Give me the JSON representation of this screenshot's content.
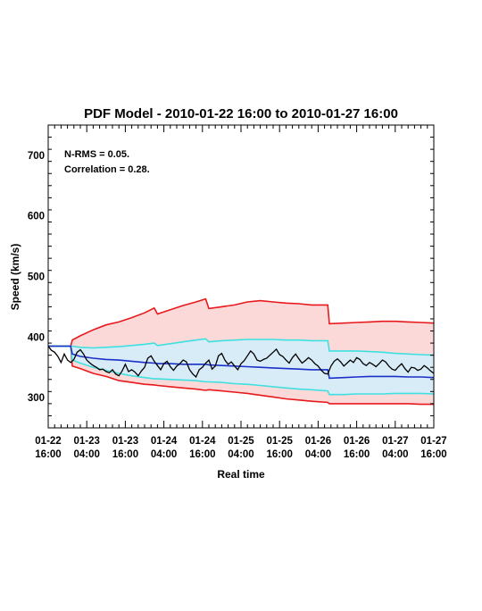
{
  "chart_data": {
    "type": "line",
    "title": "PDF Model - 2010-01-22 16:00 to 2010-01-27 16:00",
    "xlabel": "Real time",
    "ylabel": "Speed (km/s)",
    "ylim": [
      250,
      750
    ],
    "yticks": [
      300,
      400,
      500,
      600,
      700
    ],
    "xlim": [
      0,
      120
    ],
    "x_unit": "hours since 2010-01-22 16:00",
    "xticks": [
      {
        "pos": 0,
        "line1": "01-22",
        "line2": "16:00"
      },
      {
        "pos": 12,
        "line1": "01-23",
        "line2": "04:00"
      },
      {
        "pos": 24,
        "line1": "01-23",
        "line2": "16:00"
      },
      {
        "pos": 36,
        "line1": "01-24",
        "line2": "04:00"
      },
      {
        "pos": 48,
        "line1": "01-24",
        "line2": "16:00"
      },
      {
        "pos": 60,
        "line1": "01-25",
        "line2": "04:00"
      },
      {
        "pos": 72,
        "line1": "01-25",
        "line2": "16:00"
      },
      {
        "pos": 84,
        "line1": "01-26",
        "line2": "04:00"
      },
      {
        "pos": 96,
        "line1": "01-26",
        "line2": "16:00"
      },
      {
        "pos": 108,
        "line1": "01-27",
        "line2": "04:00"
      },
      {
        "pos": 120,
        "line1": "01-27",
        "line2": "16:00"
      }
    ],
    "annotations": [
      "N-RMS = 0.05.",
      "Correlation = 0.28."
    ],
    "grid": false,
    "colors": {
      "outer_band_fill": "#fbd9d9",
      "inner_band_fill": "#d8ecf8",
      "outer_bound": "#e8191c",
      "inner_bound": "#3fe0e0",
      "median": "#1a2fc8",
      "observed": "#000000"
    },
    "series": [
      {
        "role": "outer-upper",
        "x": [
          0,
          7,
          7.5,
          10,
          14,
          18,
          22,
          26,
          30,
          33,
          34,
          38,
          42,
          46,
          49,
          50,
          54,
          58,
          62,
          66,
          70,
          74,
          78,
          82,
          87,
          87.5,
          92,
          96,
          100,
          104,
          108,
          112,
          116,
          120
        ],
        "values": [
          385,
          385,
          395,
          402,
          412,
          420,
          425,
          432,
          440,
          448,
          438,
          445,
          452,
          458,
          463,
          447,
          450,
          453,
          458,
          460,
          458,
          456,
          455,
          453,
          453,
          422,
          423,
          424,
          425,
          426,
          426,
          425,
          424,
          423
        ]
      },
      {
        "role": "inner-upper",
        "x": [
          0,
          7,
          7.5,
          10,
          14,
          18,
          22,
          26,
          30,
          33,
          34,
          38,
          42,
          46,
          49,
          50,
          54,
          58,
          62,
          66,
          70,
          74,
          78,
          82,
          87,
          87.5,
          92,
          96,
          100,
          104,
          108,
          112,
          116,
          120
        ],
        "values": [
          385,
          385,
          385,
          383,
          382,
          383,
          384,
          386,
          388,
          390,
          386,
          389,
          392,
          395,
          397,
          392,
          394,
          395,
          396,
          396,
          396,
          395,
          395,
          394,
          394,
          377,
          377,
          377,
          376,
          375,
          373,
          372,
          371,
          370
        ]
      },
      {
        "role": "median",
        "x": [
          0,
          7,
          7.5,
          10,
          14,
          18,
          22,
          26,
          30,
          33,
          34,
          38,
          42,
          46,
          49,
          50,
          54,
          58,
          62,
          66,
          70,
          74,
          78,
          82,
          87,
          87.5,
          92,
          96,
          100,
          104,
          108,
          112,
          116,
          120
        ],
        "values": [
          385,
          385,
          372,
          368,
          365,
          363,
          362,
          360,
          358,
          357,
          356,
          356,
          355,
          355,
          355,
          354,
          353,
          352,
          351,
          350,
          349,
          348,
          347,
          346,
          346,
          332,
          333,
          334,
          335,
          335,
          335,
          334,
          334,
          333
        ]
      },
      {
        "role": "inner-lower",
        "x": [
          0,
          7,
          7.5,
          10,
          14,
          18,
          22,
          26,
          30,
          33,
          34,
          38,
          42,
          46,
          49,
          50,
          54,
          58,
          62,
          66,
          70,
          74,
          78,
          82,
          87,
          87.5,
          92,
          96,
          100,
          104,
          108,
          112,
          116,
          120
        ],
        "values": [
          385,
          385,
          362,
          357,
          350,
          345,
          340,
          336,
          333,
          331,
          331,
          330,
          329,
          328,
          326,
          326,
          325,
          323,
          322,
          320,
          318,
          316,
          314,
          313,
          311,
          305,
          305,
          306,
          306,
          306,
          307,
          307,
          307,
          306
        ]
      },
      {
        "role": "outer-lower",
        "x": [
          0,
          7,
          7.5,
          10,
          14,
          18,
          22,
          26,
          30,
          33,
          34,
          38,
          42,
          46,
          49,
          50,
          54,
          58,
          62,
          66,
          70,
          74,
          78,
          82,
          87,
          87.5,
          92,
          96,
          100,
          104,
          108,
          112,
          116,
          120
        ],
        "values": [
          385,
          385,
          352,
          348,
          340,
          335,
          328,
          325,
          322,
          321,
          320,
          318,
          316,
          314,
          312,
          313,
          311,
          309,
          307,
          304,
          301,
          298,
          296,
          294,
          292,
          290,
          290,
          290,
          290,
          290,
          290,
          290,
          289,
          289
        ]
      },
      {
        "role": "observed",
        "x": [
          0,
          1,
          2,
          3,
          4,
          5,
          6,
          7,
          8,
          9,
          10,
          11,
          12,
          13,
          14,
          15,
          16,
          17,
          18,
          19,
          20,
          21,
          22,
          23,
          24,
          25,
          26,
          27,
          28,
          29,
          30,
          31,
          32,
          33,
          34,
          35,
          36,
          37,
          38,
          39,
          40,
          41,
          42,
          43,
          44,
          45,
          46,
          47,
          48,
          49,
          50,
          51,
          52,
          53,
          54,
          55,
          56,
          57,
          58,
          59,
          60,
          61,
          62,
          63,
          64,
          65,
          66,
          67,
          68,
          69,
          70,
          71,
          72,
          73,
          74,
          75,
          76,
          77,
          78,
          79,
          80,
          81,
          82,
          83,
          84,
          85,
          86,
          87,
          88,
          89,
          90,
          91,
          92,
          93,
          94,
          95,
          96,
          97,
          98,
          99,
          100,
          101,
          102,
          103,
          104,
          105,
          106,
          107,
          108,
          109,
          110,
          111,
          112,
          113,
          114,
          115,
          116,
          117,
          118,
          119,
          120
        ],
        "values": [
          385,
          378,
          375,
          368,
          358,
          372,
          362,
          358,
          363,
          375,
          379,
          372,
          362,
          357,
          353,
          350,
          346,
          347,
          343,
          341,
          346,
          339,
          336,
          344,
          355,
          343,
          346,
          342,
          336,
          344,
          350,
          365,
          369,
          360,
          353,
          346,
          356,
          360,
          351,
          345,
          352,
          356,
          362,
          359,
          346,
          339,
          334,
          346,
          350,
          357,
          362,
          347,
          352,
          369,
          373,
          362,
          355,
          359,
          352,
          346,
          356,
          361,
          369,
          377,
          372,
          362,
          360,
          363,
          365,
          370,
          375,
          380,
          371,
          368,
          362,
          357,
          366,
          372,
          364,
          357,
          361,
          366,
          362,
          356,
          352,
          345,
          340,
          339,
          352,
          360,
          364,
          359,
          352,
          357,
          362,
          358,
          366,
          363,
          356,
          353,
          358,
          355,
          351,
          356,
          362,
          359,
          352,
          347,
          345,
          351,
          356,
          348,
          342,
          350,
          349,
          345,
          347,
          353,
          349,
          344,
          340
        ]
      }
    ]
  }
}
